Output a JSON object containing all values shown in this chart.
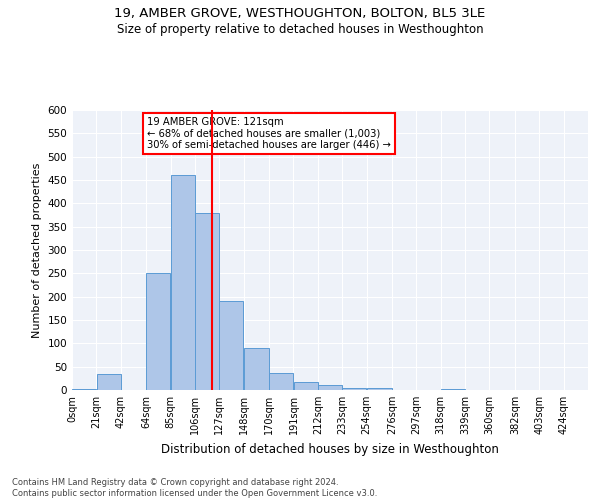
{
  "title1": "19, AMBER GROVE, WESTHOUGHTON, BOLTON, BL5 3LE",
  "title2": "Size of property relative to detached houses in Westhoughton",
  "xlabel": "Distribution of detached houses by size in Westhoughton",
  "ylabel": "Number of detached properties",
  "annotation_line1": "19 AMBER GROVE: 121sqm",
  "annotation_line2": "← 68% of detached houses are smaller (1,003)",
  "annotation_line3": "30% of semi-detached houses are larger (446) →",
  "property_size": 121,
  "bar_left_edges": [
    0,
    21,
    42,
    64,
    85,
    106,
    127,
    148,
    170,
    191,
    212,
    233,
    254,
    276,
    297,
    318,
    339,
    360,
    382,
    403
  ],
  "bar_widths": [
    21,
    21,
    22,
    21,
    21,
    21,
    21,
    22,
    21,
    21,
    21,
    21,
    22,
    21,
    21,
    21,
    21,
    22,
    21,
    21
  ],
  "bar_heights": [
    2,
    35,
    0,
    250,
    460,
    380,
    190,
    90,
    37,
    17,
    11,
    5,
    5,
    1,
    0,
    2,
    0,
    1,
    0,
    1
  ],
  "tick_labels": [
    "0sqm",
    "21sqm",
    "42sqm",
    "64sqm",
    "85sqm",
    "106sqm",
    "127sqm",
    "148sqm",
    "170sqm",
    "191sqm",
    "212sqm",
    "233sqm",
    "254sqm",
    "276sqm",
    "297sqm",
    "318sqm",
    "339sqm",
    "360sqm",
    "382sqm",
    "403sqm",
    "424sqm"
  ],
  "bar_color": "#aec6e8",
  "bar_edge_color": "#5b9bd5",
  "vline_x": 121,
  "vline_color": "red",
  "ylim": [
    0,
    600
  ],
  "yticks": [
    0,
    50,
    100,
    150,
    200,
    250,
    300,
    350,
    400,
    450,
    500,
    550,
    600
  ],
  "background_color": "#eef2f9",
  "grid_color": "#ffffff",
  "footer1": "Contains HM Land Registry data © Crown copyright and database right 2024.",
  "footer2": "Contains public sector information licensed under the Open Government Licence v3.0."
}
